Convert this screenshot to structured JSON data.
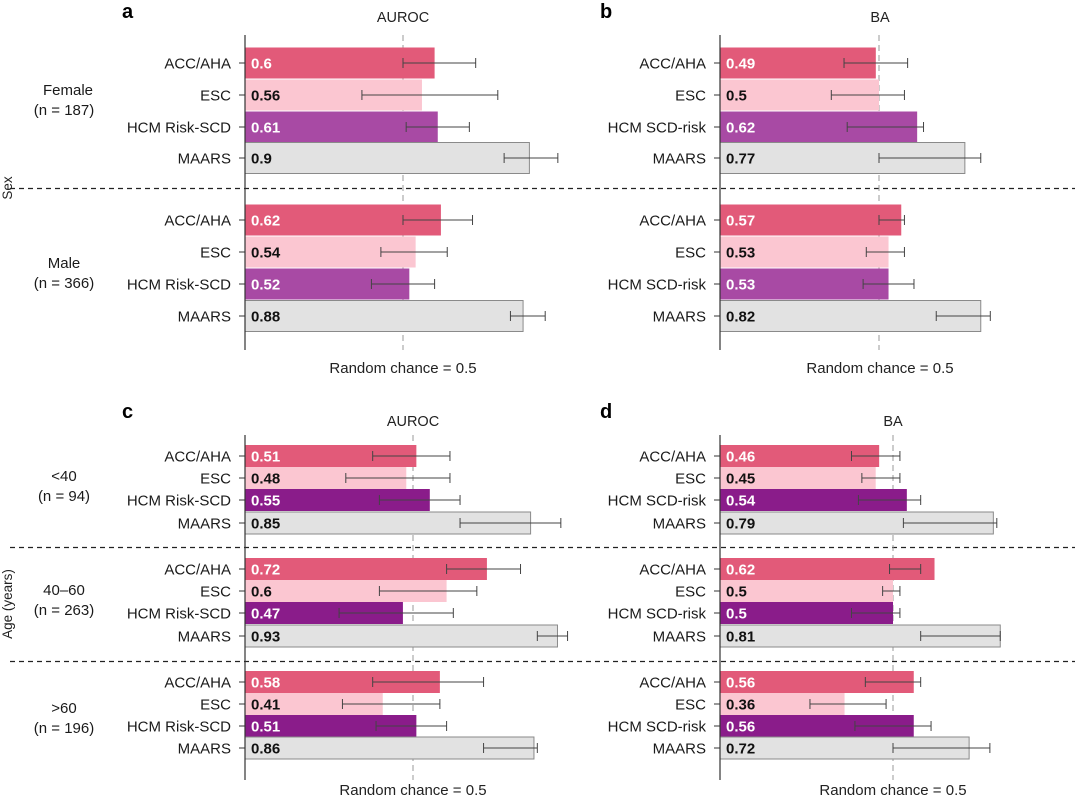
{
  "colors": {
    "ACC/AHA": "#e25a79",
    "ESC": "#fbc6d1",
    "HCM Risk-SCD": "#a84aa4",
    "HCM SCD-risk": "#a84aa4",
    "HCM-dark": "#8a1c8a",
    "MAARS": "#e2e2e2"
  },
  "side_labels": {
    "sex": "Sex",
    "age": "Age (years)"
  },
  "group_labels": {
    "female": "Female",
    "female_n": "(n = 187)",
    "male": "Male",
    "male_n": "(n = 366)",
    "lt40": "<40",
    "lt40_n": "(n = 94)",
    "mid": "40–60",
    "mid_n": "(n = 263)",
    "gt60": ">60",
    "gt60_n": "(n = 196)"
  },
  "chart_data": [
    {
      "panel": "a",
      "type": "bar",
      "metric": "AUROC",
      "chance_label": "Random chance = 0.5",
      "groups": [
        {
          "group": "Female (n = 187)",
          "bars": [
            {
              "category": "ACC/AHA",
              "value": 0.6,
              "ci": [
                0.5,
                0.73
              ]
            },
            {
              "category": "ESC",
              "value": 0.56,
              "ci": [
                0.37,
                0.8
              ]
            },
            {
              "category": "HCM Risk-SCD",
              "value": 0.61,
              "ci": [
                0.51,
                0.71
              ]
            },
            {
              "category": "MAARS",
              "value": 0.9,
              "ci": [
                0.82,
                0.99
              ]
            }
          ]
        },
        {
          "group": "Male (n = 366)",
          "bars": [
            {
              "category": "ACC/AHA",
              "value": 0.62,
              "ci": [
                0.5,
                0.72
              ]
            },
            {
              "category": "ESC",
              "value": 0.54,
              "ci": [
                0.43,
                0.64
              ]
            },
            {
              "category": "HCM Risk-SCD",
              "value": 0.52,
              "ci": [
                0.4,
                0.6
              ]
            },
            {
              "category": "MAARS",
              "value": 0.88,
              "ci": [
                0.84,
                0.95
              ]
            }
          ]
        }
      ]
    },
    {
      "panel": "b",
      "type": "bar",
      "metric": "BA",
      "chance_label": "Random chance = 0.5",
      "groups": [
        {
          "group": "Female (n = 187)",
          "bars": [
            {
              "category": "ACC/AHA",
              "value": 0.49,
              "ci": [
                0.39,
                0.59
              ]
            },
            {
              "category": "ESC",
              "value": 0.5,
              "ci": [
                0.35,
                0.58
              ]
            },
            {
              "category": "HCM SCD-risk",
              "value": 0.62,
              "ci": [
                0.4,
                0.64
              ]
            },
            {
              "category": "MAARS",
              "value": 0.77,
              "ci": [
                0.5,
                0.82
              ]
            }
          ]
        },
        {
          "group": "Male (n = 366)",
          "bars": [
            {
              "category": "ACC/AHA",
              "value": 0.57,
              "ci": [
                0.5,
                0.58
              ]
            },
            {
              "category": "ESC",
              "value": 0.53,
              "ci": [
                0.46,
                0.58
              ]
            },
            {
              "category": "HCM SCD-risk",
              "value": 0.53,
              "ci": [
                0.45,
                0.61
              ]
            },
            {
              "category": "MAARS",
              "value": 0.82,
              "ci": [
                0.68,
                0.85
              ]
            }
          ]
        }
      ]
    },
    {
      "panel": "c",
      "type": "bar",
      "metric": "AUROC",
      "chance_label": "Random chance = 0.5",
      "groups": [
        {
          "group": "<40 (n = 94)",
          "bars": [
            {
              "category": "ACC/AHA",
              "value": 0.51,
              "ci": [
                0.38,
                0.61
              ]
            },
            {
              "category": "ESC",
              "value": 0.48,
              "ci": [
                0.3,
                0.61
              ]
            },
            {
              "category": "HCM Risk-SCD",
              "value": 0.55,
              "ci": [
                0.4,
                0.64
              ]
            },
            {
              "category": "MAARS",
              "value": 0.85,
              "ci": [
                0.64,
                0.94
              ]
            }
          ]
        },
        {
          "group": "40–60 (n = 263)",
          "bars": [
            {
              "category": "ACC/AHA",
              "value": 0.72,
              "ci": [
                0.6,
                0.82
              ]
            },
            {
              "category": "ESC",
              "value": 0.6,
              "ci": [
                0.4,
                0.69
              ]
            },
            {
              "category": "HCM Risk-SCD",
              "value": 0.47,
              "ci": [
                0.28,
                0.62
              ]
            },
            {
              "category": "MAARS",
              "value": 0.93,
              "ci": [
                0.87,
                0.96
              ]
            }
          ]
        },
        {
          "group": ">60 (n = 196)",
          "bars": [
            {
              "category": "ACC/AHA",
              "value": 0.58,
              "ci": [
                0.38,
                0.71
              ]
            },
            {
              "category": "ESC",
              "value": 0.41,
              "ci": [
                0.29,
                0.58
              ]
            },
            {
              "category": "HCM Risk-SCD",
              "value": 0.51,
              "ci": [
                0.39,
                0.6
              ]
            },
            {
              "category": "MAARS",
              "value": 0.86,
              "ci": [
                0.71,
                0.87
              ]
            }
          ]
        }
      ]
    },
    {
      "panel": "d",
      "type": "bar",
      "metric": "BA",
      "chance_label": "Random chance = 0.5",
      "groups": [
        {
          "group": "<40 (n = 94)",
          "bars": [
            {
              "category": "ACC/AHA",
              "value": 0.46,
              "ci": [
                0.38,
                0.52
              ]
            },
            {
              "category": "ESC",
              "value": 0.45,
              "ci": [
                0.41,
                0.52
              ]
            },
            {
              "category": "HCM SCD-risk",
              "value": 0.54,
              "ci": [
                0.4,
                0.58
              ]
            },
            {
              "category": "MAARS",
              "value": 0.79,
              "ci": [
                0.53,
                0.8
              ]
            }
          ]
        },
        {
          "group": "40–60 (n = 263)",
          "bars": [
            {
              "category": "ACC/AHA",
              "value": 0.62,
              "ci": [
                0.49,
                0.58
              ]
            },
            {
              "category": "ESC",
              "value": 0.5,
              "ci": [
                0.47,
                0.52
              ]
            },
            {
              "category": "HCM SCD-risk",
              "value": 0.5,
              "ci": [
                0.38,
                0.52
              ]
            },
            {
              "category": "MAARS",
              "value": 0.81,
              "ci": [
                0.58,
                0.81
              ]
            }
          ]
        },
        {
          "group": ">60 (n = 196)",
          "bars": [
            {
              "category": "ACC/AHA",
              "value": 0.56,
              "ci": [
                0.42,
                0.58
              ]
            },
            {
              "category": "ESC",
              "value": 0.36,
              "ci": [
                0.26,
                0.48
              ]
            },
            {
              "category": "HCM SCD-risk",
              "value": 0.56,
              "ci": [
                0.39,
                0.61
              ]
            },
            {
              "category": "MAARS",
              "value": 0.72,
              "ci": [
                0.5,
                0.78
              ]
            }
          ]
        }
      ]
    }
  ]
}
